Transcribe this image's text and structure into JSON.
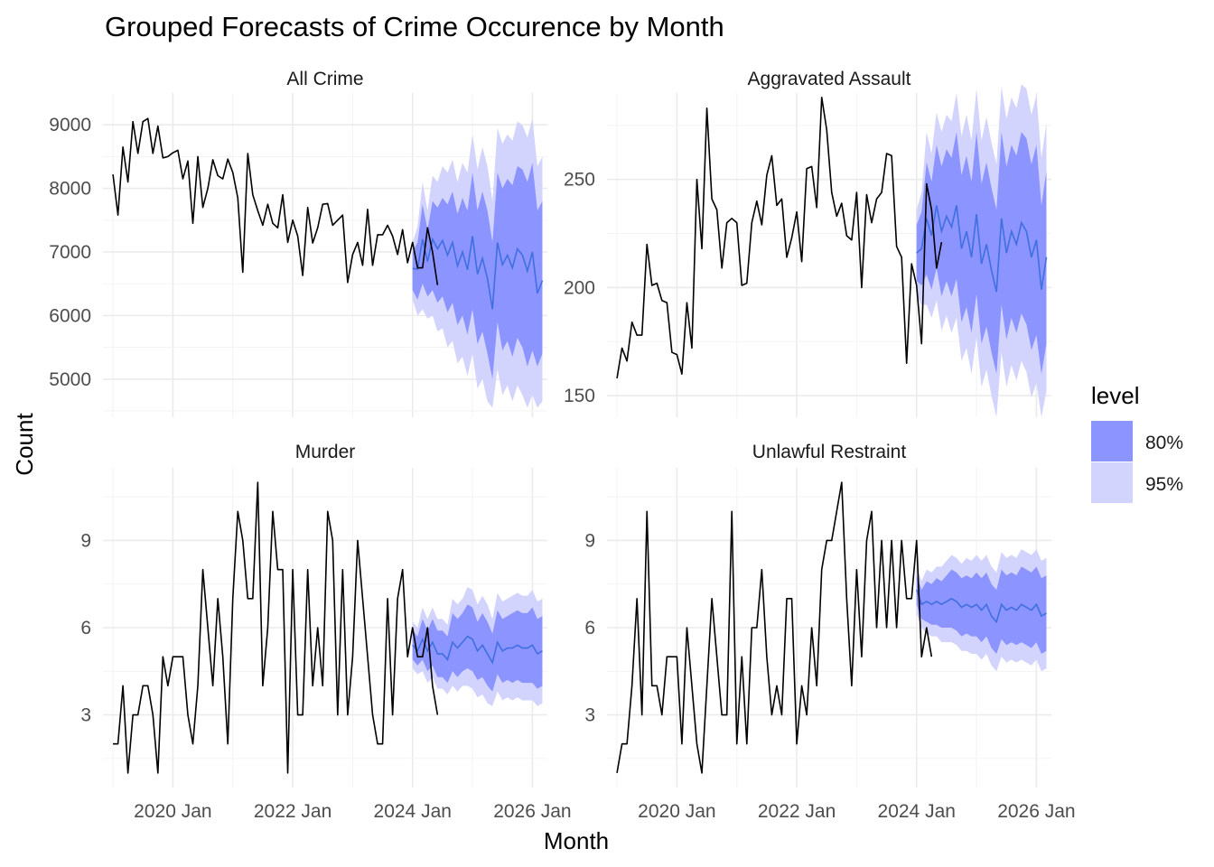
{
  "chart_data": {
    "type": "line",
    "title": "Grouped Forecasts of Crime Occurence by Month",
    "xlabel": "Month",
    "ylabel": "Count",
    "x_ticks": [
      "2020 Jan",
      "2022 Jan",
      "2024 Jan",
      "2026 Jan"
    ],
    "legend": {
      "title": "level",
      "placement": "right",
      "entries": [
        {
          "label": "80%",
          "color": "#8c94ff"
        },
        {
          "label": "95%",
          "color": "#d3d4fe"
        }
      ]
    },
    "colors": {
      "history": "#000000",
      "forecast": "#3f6fe0",
      "band80": "#8c94ff",
      "band95": "#d3d4fe"
    },
    "grid": true,
    "history_start": "2019-01",
    "forecast_start": "2024-01",
    "xlim": [
      "2018-11",
      "2026-04"
    ],
    "panels": [
      {
        "name": "All Crime",
        "ylim": [
          4400,
          9500
        ],
        "y_ticks": [
          5000,
          6000,
          7000,
          8000,
          9000
        ],
        "history": [
          8220,
          7580,
          8650,
          8100,
          9050,
          8550,
          9050,
          9100,
          8550,
          8980,
          8480,
          8500,
          8560,
          8600,
          8150,
          8430,
          7450,
          8500,
          7700,
          8000,
          8450,
          8200,
          8150,
          8460,
          8250,
          7850,
          6680,
          8550,
          7900,
          7650,
          7420,
          7750,
          7450,
          7380,
          7900,
          7150,
          7500,
          7250,
          6630,
          7700,
          7140,
          7380,
          7750,
          7760,
          7420,
          7500,
          7580,
          6520,
          6960,
          7150,
          6790,
          7670,
          6790,
          7270,
          7270,
          7420,
          7250,
          6960,
          7350,
          6830,
          7150,
          6750,
          6750,
          7380,
          7000,
          6480
        ],
        "forecast": {
          "mean": [
            6740,
            6730,
            7200,
            6850,
            7200,
            7050,
            7180,
            6950,
            7150,
            6780,
            7000,
            6720,
            7250,
            6650,
            6900,
            6580,
            6100,
            7150,
            6800,
            6950,
            6750,
            7050,
            6950,
            6700,
            7000,
            6350,
            6550
          ],
          "lo80": [
            6400,
            6250,
            6500,
            6300,
            6400,
            6200,
            6300,
            6050,
            6200,
            5850,
            6000,
            5700,
            6100,
            5550,
            5750,
            5400,
            5000,
            5900,
            5450,
            5600,
            5350,
            5650,
            5500,
            5200,
            5450,
            5200,
            5400
          ],
          "hi80": [
            7000,
            7150,
            7750,
            7350,
            7800,
            7700,
            7850,
            7750,
            7950,
            7600,
            7850,
            7650,
            8250,
            7650,
            7950,
            7650,
            7150,
            8250,
            8000,
            8150,
            8050,
            8350,
            8300,
            8100,
            8400,
            7650,
            7800
          ],
          "lo95": [
            6250,
            6000,
            6100,
            5950,
            6000,
            5750,
            5800,
            5500,
            5600,
            5250,
            5350,
            5050,
            5400,
            4850,
            5000,
            4650,
            4550,
            5150,
            4750,
            4900,
            4650,
            4900,
            4750,
            4550,
            4750,
            4550,
            4650
          ],
          "hi95": [
            7150,
            7400,
            8100,
            7650,
            8200,
            8100,
            8350,
            8250,
            8450,
            8100,
            8400,
            8250,
            8850,
            8300,
            8650,
            8350,
            7800,
            8950,
            8700,
            8850,
            8750,
            9050,
            9000,
            8800,
            9100,
            8350,
            8500
          ]
        }
      },
      {
        "name": "Aggravated Assault",
        "ylim": [
          140,
          290
        ],
        "y_ticks": [
          150,
          200,
          250
        ],
        "history": [
          158,
          172,
          166,
          184,
          178,
          178,
          220,
          201,
          202,
          194,
          193,
          170,
          169,
          160,
          193,
          172,
          250,
          218,
          283,
          241,
          236,
          209,
          230,
          232,
          230,
          201,
          202,
          230,
          240,
          229,
          252,
          261,
          238,
          241,
          214,
          223,
          235,
          212,
          255,
          256,
          237,
          288,
          273,
          244,
          233,
          239,
          224,
          222,
          244,
          200,
          243,
          230,
          241,
          244,
          262,
          261,
          219,
          214,
          165,
          211,
          201,
          174,
          248,
          236,
          209,
          221
        ],
        "forecast": {
          "mean": [
            216,
            218,
            232,
            224,
            238,
            226,
            233,
            228,
            238,
            218,
            226,
            214,
            234,
            211,
            220,
            208,
            198,
            232,
            216,
            226,
            220,
            230,
            226,
            214,
            222,
            199,
            214
          ],
          "lo80": [
            203,
            201,
            206,
            199,
            209,
            196,
            203,
            196,
            204,
            184,
            191,
            179,
            197,
            174,
            182,
            170,
            160,
            192,
            176,
            186,
            179,
            188,
            183,
            171,
            178,
            160,
            174
          ],
          "hi80": [
            229,
            235,
            258,
            249,
            266,
            256,
            264,
            260,
            272,
            252,
            261,
            249,
            272,
            248,
            258,
            246,
            236,
            272,
            256,
            266,
            261,
            272,
            269,
            257,
            266,
            238,
            254
          ],
          "lo95": [
            196,
            192,
            192,
            186,
            194,
            180,
            187,
            179,
            186,
            166,
            172,
            160,
            177,
            154,
            162,
            150,
            140,
            170,
            154,
            164,
            157,
            166,
            161,
            149,
            156,
            140,
            152
          ],
          "hi95": [
            236,
            244,
            272,
            262,
            281,
            272,
            280,
            277,
            290,
            270,
            280,
            268,
            292,
            268,
            279,
            267,
            257,
            293,
            278,
            288,
            283,
            294,
            292,
            280,
            289,
            260,
            276
          ]
        }
      },
      {
        "name": "Murder",
        "ylim": [
          0.5,
          11.5
        ],
        "y_ticks": [
          3,
          6,
          9
        ],
        "history": [
          2,
          2,
          4,
          1,
          3,
          3,
          4,
          4,
          3,
          1,
          5,
          4,
          5,
          5,
          5,
          3,
          2,
          4,
          8,
          6,
          4,
          7,
          5,
          2,
          7,
          10,
          9,
          7,
          7,
          11,
          4,
          6,
          10,
          8,
          8,
          1,
          8,
          3,
          3,
          8,
          4,
          6,
          4,
          10,
          9,
          3,
          8,
          3,
          5,
          9,
          7,
          5,
          3,
          2,
          2,
          7,
          3,
          7,
          8,
          5,
          6,
          5,
          5,
          6,
          4,
          3
        ],
        "forecast": {
          "mean": [
            5.4,
            5.2,
            5.6,
            5.2,
            5.5,
            5.1,
            5.1,
            4.9,
            5.5,
            5.3,
            5.5,
            5.7,
            5.6,
            5.2,
            5.4,
            5.1,
            4.8,
            5.5,
            5.2,
            5.3,
            5.3,
            5.4,
            5.3,
            5.3,
            5.4,
            5.1,
            5.2
          ],
          "lo80": [
            4.9,
            4.7,
            4.9,
            4.5,
            4.7,
            4.3,
            4.3,
            4.1,
            4.5,
            4.3,
            4.5,
            4.6,
            4.5,
            4.2,
            4.3,
            4.0,
            3.8,
            4.4,
            4.1,
            4.2,
            4.1,
            4.2,
            4.1,
            4.1,
            4.1,
            3.9,
            4.0
          ],
          "hi80": [
            5.9,
            5.7,
            6.3,
            5.9,
            6.3,
            5.9,
            5.9,
            5.7,
            6.5,
            6.3,
            6.5,
            6.8,
            6.7,
            6.2,
            6.5,
            6.2,
            5.8,
            6.6,
            6.3,
            6.4,
            6.5,
            6.6,
            6.5,
            6.5,
            6.7,
            6.3,
            6.4
          ],
          "lo95": [
            4.6,
            4.4,
            4.5,
            4.1,
            4.3,
            3.9,
            3.9,
            3.7,
            4.0,
            3.8,
            4.0,
            4.0,
            3.9,
            3.6,
            3.7,
            3.4,
            3.3,
            3.8,
            3.5,
            3.6,
            3.5,
            3.6,
            3.5,
            3.5,
            3.5,
            3.3,
            3.4
          ],
          "hi95": [
            6.2,
            6.0,
            6.7,
            6.3,
            6.7,
            6.3,
            6.3,
            6.1,
            7.0,
            6.8,
            7.0,
            7.4,
            7.3,
            6.8,
            7.1,
            6.8,
            6.3,
            7.2,
            6.9,
            7.0,
            7.1,
            7.2,
            7.1,
            7.1,
            7.3,
            6.9,
            7.0
          ]
        }
      },
      {
        "name": "Unlawful Restraint",
        "ylim": [
          0.5,
          11.5
        ],
        "y_ticks": [
          3,
          6,
          9
        ],
        "history": [
          1,
          2,
          2,
          4,
          7,
          3,
          10,
          4,
          4,
          3,
          5,
          5,
          5,
          2,
          6,
          4,
          2,
          1,
          4,
          7,
          5,
          3,
          3,
          10,
          2,
          5,
          2,
          6,
          6,
          8,
          5,
          3,
          4,
          3,
          7,
          7,
          2,
          4,
          3,
          6,
          4,
          8,
          9,
          9,
          10,
          11,
          7,
          4,
          8,
          5,
          9,
          10,
          6,
          9,
          6,
          9,
          6,
          9,
          7,
          7,
          9,
          5,
          6,
          5
        ],
        "forecast": {
          "mean": [
            7.3,
            6.8,
            6.9,
            6.8,
            6.9,
            6.8,
            6.9,
            7.0,
            6.9,
            6.7,
            6.8,
            6.7,
            6.8,
            6.6,
            6.8,
            6.4,
            6.2,
            6.8,
            6.6,
            6.7,
            6.6,
            6.8,
            6.7,
            6.6,
            6.8,
            6.4,
            6.5
          ],
          "lo80": [
            6.8,
            6.3,
            6.2,
            6.1,
            6.1,
            6.0,
            6.0,
            6.0,
            5.9,
            5.7,
            5.8,
            5.7,
            5.7,
            5.5,
            5.7,
            5.3,
            5.1,
            5.6,
            5.4,
            5.5,
            5.4,
            5.5,
            5.4,
            5.3,
            5.5,
            5.1,
            5.2
          ],
          "hi80": [
            7.8,
            7.3,
            7.6,
            7.5,
            7.7,
            7.6,
            7.8,
            8.0,
            7.9,
            7.7,
            7.8,
            7.7,
            7.9,
            7.7,
            7.9,
            7.5,
            7.3,
            8.0,
            7.8,
            7.9,
            7.8,
            8.1,
            8.0,
            7.9,
            8.1,
            7.7,
            7.8
          ],
          "lo95": [
            6.5,
            6.0,
            5.8,
            5.7,
            5.7,
            5.5,
            5.5,
            5.5,
            5.4,
            5.2,
            5.2,
            5.1,
            5.1,
            4.9,
            5.1,
            4.7,
            4.5,
            5.0,
            4.8,
            4.9,
            4.8,
            4.9,
            4.8,
            4.7,
            4.9,
            4.5,
            4.6
          ],
          "hi95": [
            8.1,
            7.6,
            8.0,
            7.9,
            8.1,
            8.1,
            8.3,
            8.5,
            8.4,
            8.2,
            8.4,
            8.3,
            8.5,
            8.3,
            8.5,
            8.1,
            7.9,
            8.6,
            8.4,
            8.5,
            8.4,
            8.7,
            8.6,
            8.5,
            8.7,
            8.3,
            8.4
          ]
        }
      }
    ]
  }
}
